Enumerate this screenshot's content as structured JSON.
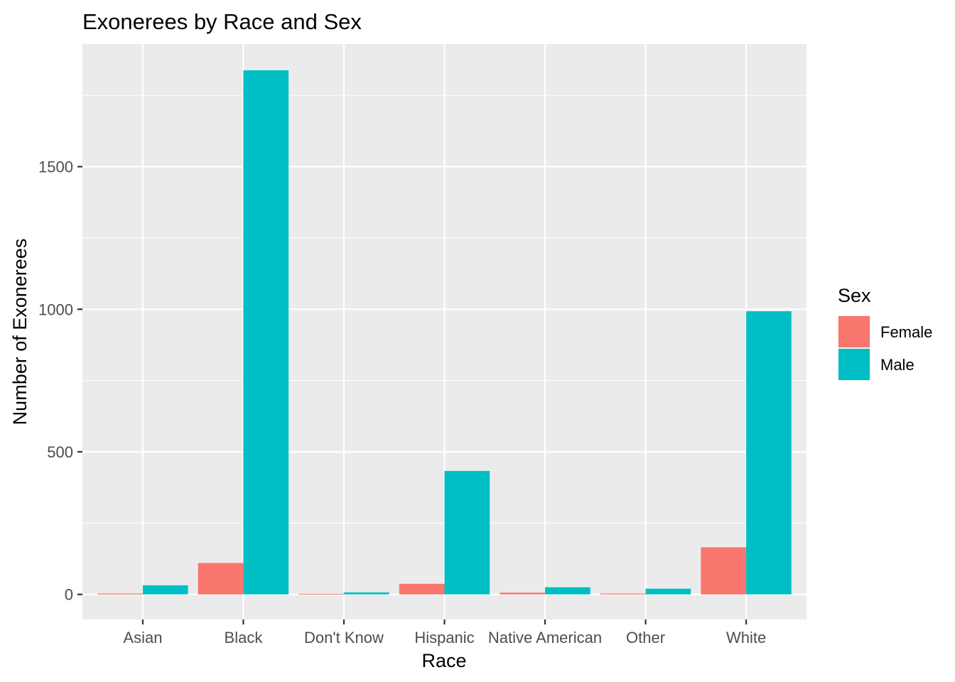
{
  "chart_data": {
    "type": "bar",
    "title": "Exonerees by Race and Sex",
    "xlabel": "Race",
    "ylabel": "Number of Exonerees",
    "categories": [
      "Asian",
      "Black",
      "Don't Know",
      "Hispanic",
      "Native American",
      "Other",
      "White"
    ],
    "series": [
      {
        "name": "Female",
        "color": "#F8766D",
        "values": [
          3,
          110,
          2,
          37,
          6,
          3,
          165
        ]
      },
      {
        "name": "Male",
        "color": "#00BFC4",
        "values": [
          32,
          1838,
          7,
          433,
          25,
          20,
          993
        ]
      }
    ],
    "ylim": [
      -88,
      1930
    ],
    "yticks": [
      0,
      500,
      1000,
      1500
    ],
    "grid": true,
    "legend": {
      "title": "Sex",
      "placement": "right"
    }
  }
}
